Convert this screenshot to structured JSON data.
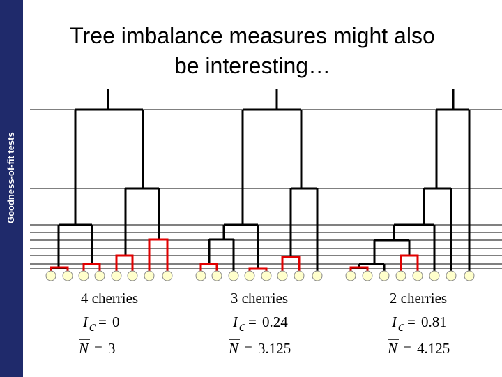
{
  "sidebar": "Goodness-of-fit tests",
  "title": [
    "Tree imbalance measures might also",
    "be interesting…"
  ],
  "symbols": {
    "ic": "I",
    "ic_sub": "c",
    "n": "N",
    "equals": "="
  },
  "panels": [
    {
      "label": "4 cherries",
      "ic_value": "0",
      "n_value": "3"
    },
    {
      "label": "3 cherries",
      "ic_value": "0.24",
      "n_value": "3.125"
    },
    {
      "label": "2 cherries",
      "ic_value": "0.81",
      "n_value": "4.125"
    }
  ]
}
